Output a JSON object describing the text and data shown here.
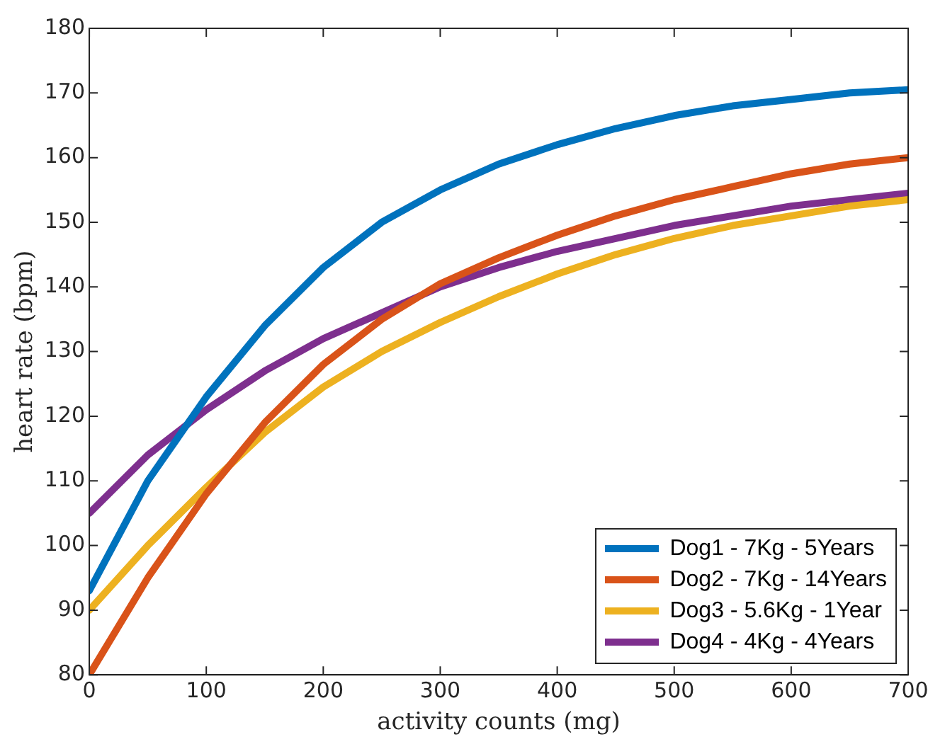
{
  "chart_data": {
    "type": "line",
    "xlabel": "activity counts (mg)",
    "ylabel": "heart rate (bpm)",
    "xlim": [
      0,
      700
    ],
    "ylim": [
      80,
      180
    ],
    "xticks": [
      0,
      100,
      200,
      300,
      400,
      500,
      600,
      700
    ],
    "yticks": [
      80,
      90,
      100,
      110,
      120,
      130,
      140,
      150,
      160,
      170,
      180
    ],
    "grid": false,
    "legend": "bottom right",
    "marker": "none",
    "line_style": "solid",
    "x": [
      0,
      50,
      100,
      150,
      200,
      250,
      300,
      350,
      400,
      450,
      500,
      550,
      600,
      650,
      700
    ],
    "series": [
      {
        "name": "Dog1 - 7Kg - 5Years",
        "color": "#0072bd",
        "values": [
          93,
          110,
          123,
          134,
          143,
          150,
          155,
          159,
          162,
          164.5,
          166.5,
          168,
          169,
          170,
          170.5
        ]
      },
      {
        "name": "Dog2 - 7Kg - 14Years",
        "color": "#d95319",
        "values": [
          80,
          95,
          108,
          119,
          128,
          135,
          140.5,
          144.5,
          148,
          151,
          153.5,
          155.5,
          157.5,
          159,
          160
        ]
      },
      {
        "name": "Dog3 - 5.6Kg - 1Year",
        "color": "#edb120",
        "values": [
          90,
          100,
          109,
          117.5,
          124.5,
          130,
          134.5,
          138.5,
          142,
          145,
          147.5,
          149.5,
          151,
          152.5,
          153.5
        ]
      },
      {
        "name": "Dog4 - 4Kg - 4Years",
        "color": "#7e2f8e",
        "values": [
          105,
          114,
          121,
          127,
          132,
          136,
          140,
          143,
          145.5,
          147.5,
          149.5,
          151,
          152.5,
          153.5,
          154.5
        ]
      }
    ]
  }
}
